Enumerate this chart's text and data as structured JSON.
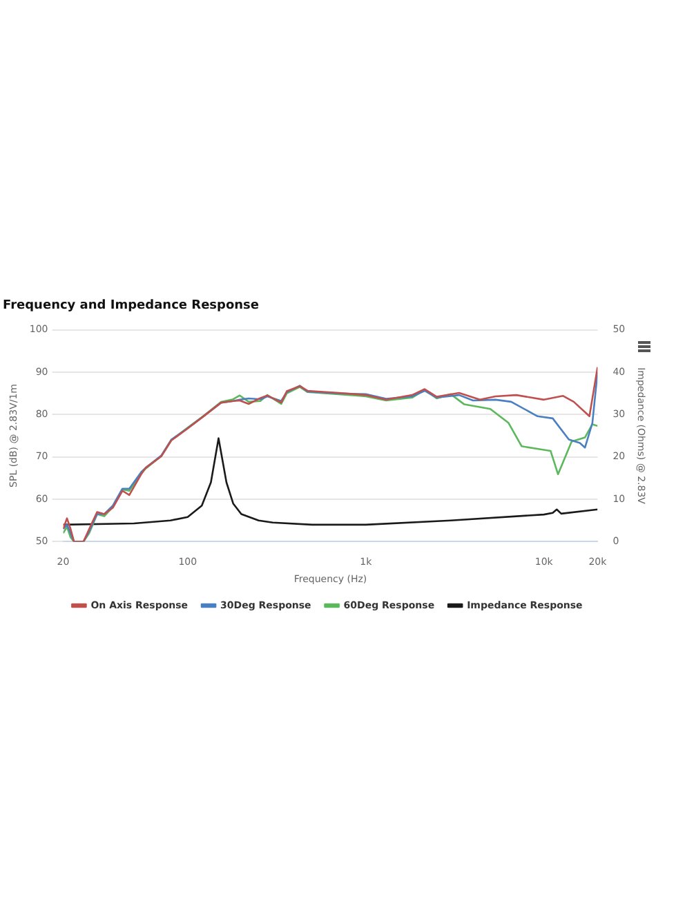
{
  "chart_data": {
    "type": "line",
    "title": "Frequency and Impedance Response",
    "xlabel": "Frequency (Hz)",
    "ylabel": "SPL (dB) @ 2.83V/1m",
    "y2label": "Impedance (Ohms) @ 2.83V",
    "log": "x",
    "xlim": [
      20,
      20000
    ],
    "xticks": [
      20,
      100,
      {
        "value": 1000,
        "label": "1k"
      },
      {
        "value": 10000,
        "label": "10k"
      },
      {
        "value": 20000,
        "label": "20k"
      }
    ],
    "ylim": [
      50,
      100
    ],
    "yticks": [
      50,
      60,
      70,
      80,
      90,
      100
    ],
    "y2lim": [
      0,
      50
    ],
    "y2ticks": [
      0,
      10,
      20,
      30,
      40,
      50
    ],
    "grid": "y",
    "legend": "bottom",
    "marker": "none",
    "series": [
      {
        "name": "On Axis Response",
        "color": "#c0504d",
        "x": [
          20,
          21,
          22,
          23,
          26,
          28,
          31,
          34,
          38,
          43,
          47,
          55,
          58,
          71,
          81,
          100,
          122,
          154,
          180,
          196,
          220,
          256,
          280,
          335,
          360,
          426,
          471,
          706,
          1000,
          1300,
          1820,
          2140,
          2500,
          3340,
          4370,
          5350,
          7000,
          10000,
          12800,
          14700,
          18000,
          20000
        ],
        "values": [
          53,
          55.5,
          53,
          50,
          50,
          53,
          57,
          56.5,
          58,
          62,
          61,
          66,
          67.4,
          70.1,
          73.9,
          76.7,
          79.5,
          82.8,
          83.2,
          83.3,
          82.5,
          83.9,
          84.5,
          82.8,
          85.5,
          86.7,
          85.6,
          85.1,
          84.6,
          83.5,
          84.6,
          86,
          84.2,
          85.1,
          83.5,
          84.3,
          84.6,
          83.5,
          84.4,
          83,
          79.6,
          91.2
        ]
      },
      {
        "name": "30Deg Response",
        "color": "#4a7fc1",
        "x": [
          20,
          21,
          22,
          23,
          26,
          28,
          31,
          34,
          38,
          43,
          47,
          55,
          58,
          71,
          81,
          100,
          122,
          154,
          180,
          196,
          220,
          256,
          280,
          335,
          360,
          426,
          471,
          706,
          1000,
          1300,
          1820,
          2140,
          2500,
          3340,
          4000,
          5350,
          6550,
          9200,
          11200,
          13800,
          15900,
          17000,
          18700,
          20000
        ],
        "values": [
          53,
          54,
          52,
          50,
          50,
          52.5,
          56.5,
          56.5,
          58.5,
          62.5,
          62.5,
          66.5,
          67.4,
          70.3,
          74.1,
          76.8,
          79.5,
          82.8,
          83.2,
          83.5,
          83.8,
          83.6,
          84.3,
          83.2,
          85.3,
          86.8,
          85.4,
          85,
          84.8,
          83.7,
          84.3,
          85.6,
          84,
          84.6,
          83.3,
          83.5,
          83,
          79.6,
          79.1,
          74.1,
          73.3,
          72.2,
          78,
          90
        ]
      },
      {
        "name": "60Deg Response",
        "color": "#5cb85c",
        "x": [
          20,
          21,
          22,
          23,
          26,
          28,
          31,
          34,
          38,
          43,
          47,
          55,
          58,
          71,
          81,
          100,
          122,
          154,
          180,
          196,
          220,
          256,
          280,
          335,
          360,
          426,
          471,
          706,
          1000,
          1300,
          1820,
          2140,
          2500,
          3000,
          3570,
          5000,
          6330,
          7500,
          9200,
          10900,
          12000,
          14300,
          17000,
          18700,
          20000
        ],
        "values": [
          52,
          53.5,
          51,
          50,
          50,
          52,
          56.5,
          56,
          58.2,
          62.3,
          62,
          66.2,
          67.2,
          70.2,
          74,
          76.9,
          79.6,
          83,
          83.6,
          84.5,
          83,
          83.2,
          84.6,
          82.5,
          85,
          86.5,
          85.3,
          84.8,
          84.3,
          83.3,
          84,
          85.8,
          83.8,
          84.8,
          82.4,
          81.3,
          78,
          72.5,
          71.9,
          71.4,
          65.9,
          73.6,
          74.6,
          77.7,
          77.3
        ]
      },
      {
        "name": "Impedance Response",
        "color": "#1a1a1a",
        "axis": "y2",
        "x": [
          20,
          50,
          80,
          100,
          120,
          135,
          149,
          165,
          180,
          200,
          250,
          300,
          500,
          1000,
          3000,
          10000,
          11200,
          11800,
          12500,
          20000
        ],
        "values": [
          4,
          4.3,
          5,
          5.8,
          8.5,
          14,
          24.4,
          14,
          9,
          6.5,
          5,
          4.5,
          4,
          4,
          5,
          6.4,
          6.8,
          7.6,
          6.6,
          7.6
        ]
      }
    ]
  }
}
